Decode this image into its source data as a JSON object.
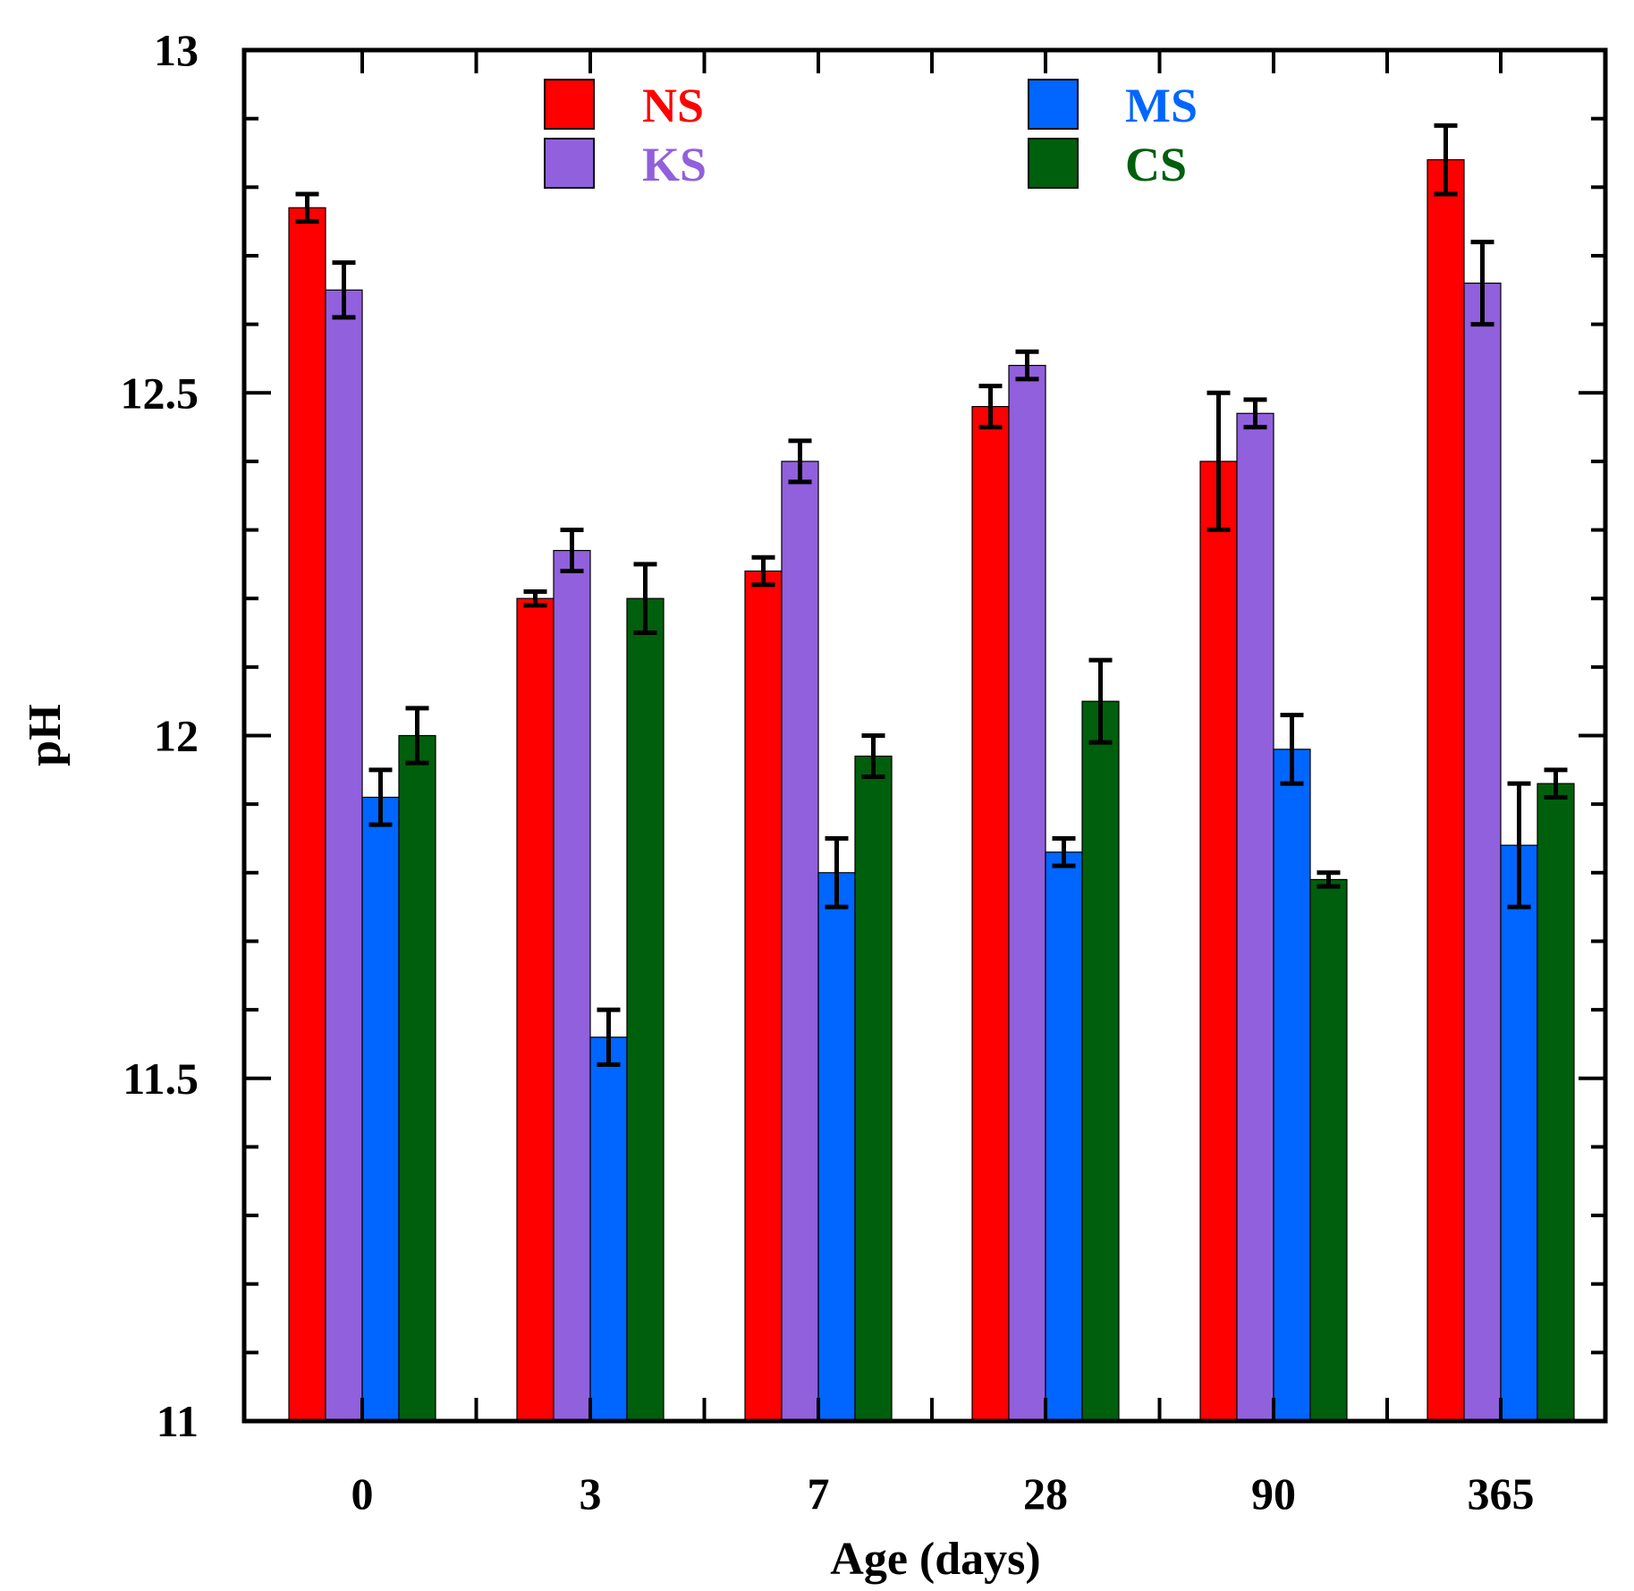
{
  "chart_data": {
    "type": "bar",
    "title": "",
    "xlabel": "Age (days)",
    "ylabel": "pH",
    "ylim": [
      11,
      13
    ],
    "yticks": [
      "11",
      "11.5",
      "12",
      "12.5",
      "13"
    ],
    "grid": false,
    "legend_position": "top",
    "categories": [
      "0",
      "3",
      "7",
      "28",
      "90",
      "365"
    ],
    "series": [
      {
        "name": "NS",
        "color": "#ff0000",
        "values": [
          12.77,
          12.2,
          12.24,
          12.48,
          12.4,
          12.84
        ],
        "errors": [
          0.02,
          0.01,
          0.02,
          0.03,
          0.1,
          0.05
        ]
      },
      {
        "name": "KS",
        "color": "#9160dc",
        "values": [
          12.65,
          12.27,
          12.4,
          12.54,
          12.47,
          12.66
        ],
        "errors": [
          0.04,
          0.03,
          0.03,
          0.02,
          0.02,
          0.06
        ]
      },
      {
        "name": "MS",
        "color": "#0066ff",
        "values": [
          11.91,
          11.56,
          11.8,
          11.83,
          11.98,
          11.84
        ],
        "errors": [
          0.04,
          0.04,
          0.05,
          0.02,
          0.05,
          0.09
        ]
      },
      {
        "name": "CS",
        "color": "#005f0c",
        "values": [
          12.0,
          12.2,
          11.97,
          12.05,
          11.79,
          11.93
        ],
        "errors": [
          0.04,
          0.05,
          0.03,
          0.06,
          0.01,
          0.02
        ]
      }
    ]
  }
}
